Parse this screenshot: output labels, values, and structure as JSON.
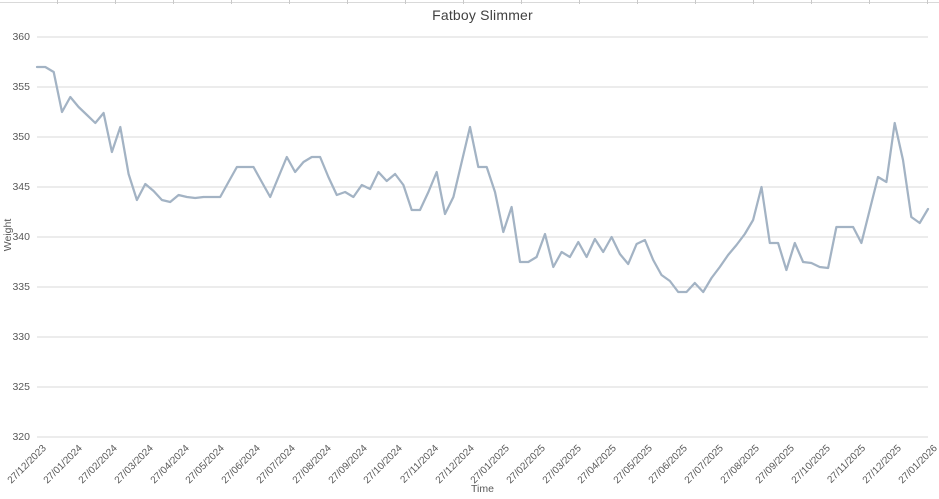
{
  "window": {
    "background": "#ffffff"
  },
  "spreadsheet_strip": {
    "first_tick_x": 57,
    "tick_spacing": 58,
    "line_color": "#d9d9d9",
    "tick_color": "#c9c9c9"
  },
  "chart_data": {
    "type": "line",
    "title": "Fatboy Slimmer",
    "xlabel": "Time",
    "ylabel": "Weight",
    "ylim": [
      320,
      360
    ],
    "yticks": [
      320,
      325,
      330,
      335,
      340,
      345,
      350,
      355,
      360
    ],
    "grid": true,
    "legend_position": "none",
    "gridline_color": "#d9d9d9",
    "tick_label_color": "#595959",
    "title_color": "#404040",
    "x_tick_labels": [
      "27/12/2023",
      "27/01/2024",
      "27/02/2024",
      "27/03/2024",
      "27/04/2024",
      "27/05/2024",
      "27/06/2024",
      "27/07/2024",
      "27/08/2024",
      "27/09/2024",
      "27/10/2024",
      "27/11/2024",
      "27/12/2024",
      "27/01/2025",
      "27/02/2025",
      "27/03/2025",
      "27/04/2025",
      "27/05/2025",
      "27/06/2025",
      "27/07/2025",
      "27/08/2025",
      "27/09/2025",
      "27/10/2025",
      "27/11/2025",
      "27/12/2025",
      "27/01/2026"
    ],
    "x_resolution": "weekly samples, evenly spaced between monthly axis labels",
    "n_points": 108,
    "series": [
      {
        "name": "Weight",
        "color": "#a3b3c4",
        "stroke_width": 2.25,
        "values": [
          357,
          357,
          356.5,
          352.5,
          354,
          353,
          352.2,
          351.4,
          352.4,
          348.5,
          351,
          346.3,
          343.7,
          345.3,
          344.6,
          343.7,
          343.5,
          344.2,
          344,
          343.9,
          344,
          344,
          344,
          345.5,
          347,
          347,
          347,
          345.5,
          344,
          346,
          348,
          346.5,
          347.5,
          348,
          348,
          346,
          344.2,
          344.5,
          344,
          345.2,
          344.8,
          346.5,
          345.6,
          346.3,
          345.2,
          342.7,
          342.7,
          344.5,
          346.5,
          342.3,
          344,
          347.5,
          351,
          347,
          347,
          344.5,
          340.5,
          343,
          337.5,
          337.5,
          338,
          340.3,
          337,
          338.5,
          338,
          339.5,
          338,
          339.8,
          338.5,
          340,
          338.3,
          337.3,
          339.3,
          339.7,
          337.7,
          336.2,
          335.6,
          334.5,
          334.5,
          335.4,
          334.5,
          335.9,
          337,
          338.2,
          339.2,
          340.3,
          341.7,
          345,
          339.4,
          339.4,
          336.7,
          339.4,
          337.5,
          337.4,
          337,
          336.9,
          341,
          341,
          341,
          339.4,
          342.7,
          346,
          345.5,
          351.4,
          347.7,
          342,
          341.4,
          342.8
        ]
      }
    ]
  }
}
